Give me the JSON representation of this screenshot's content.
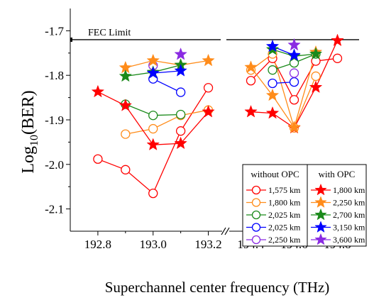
{
  "chart_data": {
    "type": "scatter",
    "xlabel": "Superchannel center frequency (THz)",
    "ylabel_base": "Log",
    "ylabel_sub": "10",
    "ylabel_arg": "(BER)",
    "ylim": [
      -2.15,
      -1.65
    ],
    "y_ticks": [
      -2.1,
      -2.0,
      -1.9,
      -1.8,
      -1.7
    ],
    "y_tick_labels": [
      "-2.1",
      "-2.0",
      "-1.9",
      "-1.8",
      "-1.7"
    ],
    "x_segments": [
      {
        "range": [
          192.7,
          193.25
        ],
        "ticks": [
          192.8,
          193.0,
          193.2
        ],
        "tick_labels": [
          "192.8",
          "193.0",
          "193.2"
        ]
      },
      {
        "range": [
          194.3,
          194.9
        ],
        "ticks": [
          194.4,
          194.6,
          194.8
        ],
        "tick_labels": [
          "194.4",
          "194.6",
          "194.8"
        ]
      }
    ],
    "x_break": true,
    "grid": false,
    "fec_limit": {
      "label": "FEC Limit",
      "value": -1.72
    },
    "legend_placement": "bottom-right",
    "legend_groups": [
      {
        "header": "without OPC",
        "entries": [
          {
            "label": "1,575 km",
            "color": "#ff0000"
          },
          {
            "label": "1,800 km",
            "color": "#ff8c1a"
          },
          {
            "label": "2,025 km",
            "color": "#1a8a1a"
          },
          {
            "label": "2,025 km",
            "color": "#0000ff"
          },
          {
            "label": "2,250 km",
            "color": "#8a2be2"
          }
        ]
      },
      {
        "header": "with OPC",
        "entries": [
          {
            "label": "1,800 km",
            "color": "#ff0000"
          },
          {
            "label": "2,250 km",
            "color": "#ff8c1a"
          },
          {
            "label": "2,700 km",
            "color": "#1a8a1a"
          },
          {
            "label": "3,150 km",
            "color": "#0000ff"
          },
          {
            "label": "3,600 km",
            "color": "#8a2be2"
          }
        ]
      }
    ],
    "series": [
      {
        "name": "1,575 km",
        "group": "without OPC",
        "marker": "circle",
        "color": "#ff0000",
        "segments": [
          [
            [
              192.8,
              -1.988
            ],
            [
              192.9,
              -2.012
            ],
            [
              193.0,
              -2.065
            ],
            [
              193.1,
              -1.925
            ],
            [
              193.2,
              -1.828
            ]
          ],
          [
            [
              194.4,
              -1.812
            ],
            [
              194.5,
              -1.762
            ],
            [
              194.6,
              -1.855
            ],
            [
              194.7,
              -1.768
            ],
            [
              194.8,
              -1.762
            ]
          ]
        ]
      },
      {
        "name": "1,800 km",
        "group": "without OPC",
        "marker": "circle",
        "color": "#ff8c1a",
        "segments": [
          [
            [
              192.9,
              -1.932
            ],
            [
              193.0,
              -1.92
            ],
            [
              193.1,
              -1.89
            ],
            [
              193.2,
              -1.878
            ]
          ],
          [
            [
              194.4,
              -1.788
            ],
            [
              194.5,
              -1.752
            ],
            [
              194.6,
              -1.918
            ],
            [
              194.7,
              -1.802
            ]
          ]
        ]
      },
      {
        "name": "2,025 km",
        "group": "without OPC",
        "marker": "circle",
        "color": "#1a8a1a",
        "segments": [
          [
            [
              192.9,
              -1.865
            ],
            [
              193.0,
              -1.89
            ],
            [
              193.1,
              -1.888
            ]
          ],
          [
            [
              194.5,
              -1.788
            ],
            [
              194.6,
              -1.772
            ],
            [
              194.7,
              -1.752
            ]
          ]
        ]
      },
      {
        "name": "2,025 km",
        "group": "without OPC",
        "marker": "circle",
        "color": "#0000ff",
        "segments": [
          [
            [
              193.0,
              -1.808
            ],
            [
              193.1,
              -1.838
            ]
          ],
          [
            [
              194.5,
              -1.818
            ],
            [
              194.6,
              -1.815
            ]
          ]
        ]
      },
      {
        "name": "2,250 km",
        "group": "without OPC",
        "marker": "circle",
        "color": "#8a2be2",
        "segments": [
          [
            [
              193.0,
              -1.778
            ]
          ],
          [
            [
              194.6,
              -1.795
            ]
          ]
        ]
      },
      {
        "name": "1,800 km",
        "group": "with OPC",
        "marker": "star",
        "color": "#ff0000",
        "segments": [
          [
            [
              192.8,
              -1.837
            ],
            [
              192.9,
              -1.868
            ],
            [
              193.0,
              -1.956
            ],
            [
              193.1,
              -1.953
            ],
            [
              193.2,
              -1.882
            ]
          ],
          [
            [
              194.4,
              -1.882
            ],
            [
              194.5,
              -1.885
            ],
            [
              194.6,
              -1.918
            ],
            [
              194.7,
              -1.827
            ],
            [
              194.8,
              -1.722
            ]
          ]
        ]
      },
      {
        "name": "2,250 km",
        "group": "with OPC",
        "marker": "star",
        "color": "#ff8c1a",
        "segments": [
          [
            [
              192.9,
              -1.783
            ],
            [
              193.0,
              -1.767
            ],
            [
              193.1,
              -1.777
            ],
            [
              193.2,
              -1.767
            ]
          ],
          [
            [
              194.4,
              -1.782
            ],
            [
              194.5,
              -1.845
            ],
            [
              194.6,
              -1.917
            ],
            [
              194.7,
              -1.748
            ]
          ]
        ]
      },
      {
        "name": "2,700 km",
        "group": "with OPC",
        "marker": "star",
        "color": "#1a8a1a",
        "segments": [
          [
            [
              192.9,
              -1.802
            ],
            [
              193.0,
              -1.793
            ],
            [
              193.1,
              -1.777
            ]
          ],
          [
            [
              194.5,
              -1.742
            ],
            [
              194.6,
              -1.757
            ],
            [
              194.7,
              -1.752
            ]
          ]
        ]
      },
      {
        "name": "3,150 km",
        "group": "with OPC",
        "marker": "star",
        "color": "#0000ff",
        "segments": [
          [
            [
              193.0,
              -1.795
            ],
            [
              193.1,
              -1.79
            ]
          ],
          [
            [
              194.5,
              -1.735
            ],
            [
              194.6,
              -1.755
            ]
          ]
        ]
      },
      {
        "name": "3,600 km",
        "group": "with OPC",
        "marker": "star",
        "color": "#8a2be2",
        "segments": [
          [
            [
              193.1,
              -1.753
            ]
          ],
          [
            [
              194.6,
              -1.732
            ]
          ]
        ]
      }
    ]
  }
}
